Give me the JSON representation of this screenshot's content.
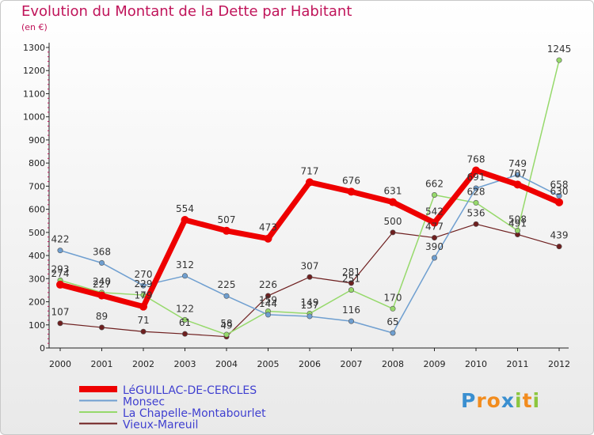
{
  "title": "Evolution du Montant de la Dette par Habitant",
  "subtitle": "(en €)",
  "logo_text": "Proxiti",
  "logo_letters": [
    {
      "ch": "P",
      "color": "#3a8fd0"
    },
    {
      "ch": "r",
      "color": "#f28c1e"
    },
    {
      "ch": "o",
      "color": "#f28c1e"
    },
    {
      "ch": "x",
      "color": "#3a8fd0"
    },
    {
      "ch": "i",
      "color": "#8cc63f"
    },
    {
      "ch": "t",
      "color": "#f28c1e"
    },
    {
      "ch": "i",
      "color": "#8cc63f"
    }
  ],
  "chart_data": {
    "type": "line",
    "title": "Evolution du Montant de la Dette par Habitant",
    "subtitle": "(en €)",
    "x": [
      "2000",
      "2001",
      "2002",
      "2003",
      "2004",
      "2005",
      "2006",
      "2007",
      "2008",
      "2009",
      "2010",
      "2011",
      "2012"
    ],
    "ylim": [
      0,
      1300
    ],
    "yticks": [
      0,
      100,
      200,
      300,
      400,
      500,
      600,
      700,
      800,
      900,
      1000,
      1100,
      1200,
      1300
    ],
    "grid": false,
    "legend": "bottom-left",
    "series": [
      {
        "name": "LéGUILLAC-DE-CERCLES",
        "color": "#ee0000",
        "width": 7,
        "marker": 5,
        "values": [
          274,
          227,
          179,
          554,
          507,
          473,
          717,
          676,
          631,
          542,
          768,
          707,
          630
        ]
      },
      {
        "name": "Monsec",
        "color": "#6f9fd0",
        "width": 1.5,
        "marker": 3.2,
        "values": [
          422,
          368,
          270,
          312,
          225,
          144,
          137,
          116,
          65,
          390,
          691,
          749,
          658
        ]
      },
      {
        "name": "La Chapelle-Montabourlet",
        "color": "#96d96b",
        "width": 1.5,
        "marker": 3.2,
        "values": [
          293,
          240,
          229,
          122,
          58,
          159,
          149,
          251,
          170,
          662,
          628,
          508,
          1245
        ]
      },
      {
        "name": "Vieux-Mareuil",
        "color": "#6e1f1f",
        "width": 1.2,
        "marker": 3.2,
        "values": [
          107,
          89,
          71,
          61,
          49,
          226,
          307,
          281,
          500,
          477,
          536,
          491,
          439
        ]
      }
    ]
  }
}
